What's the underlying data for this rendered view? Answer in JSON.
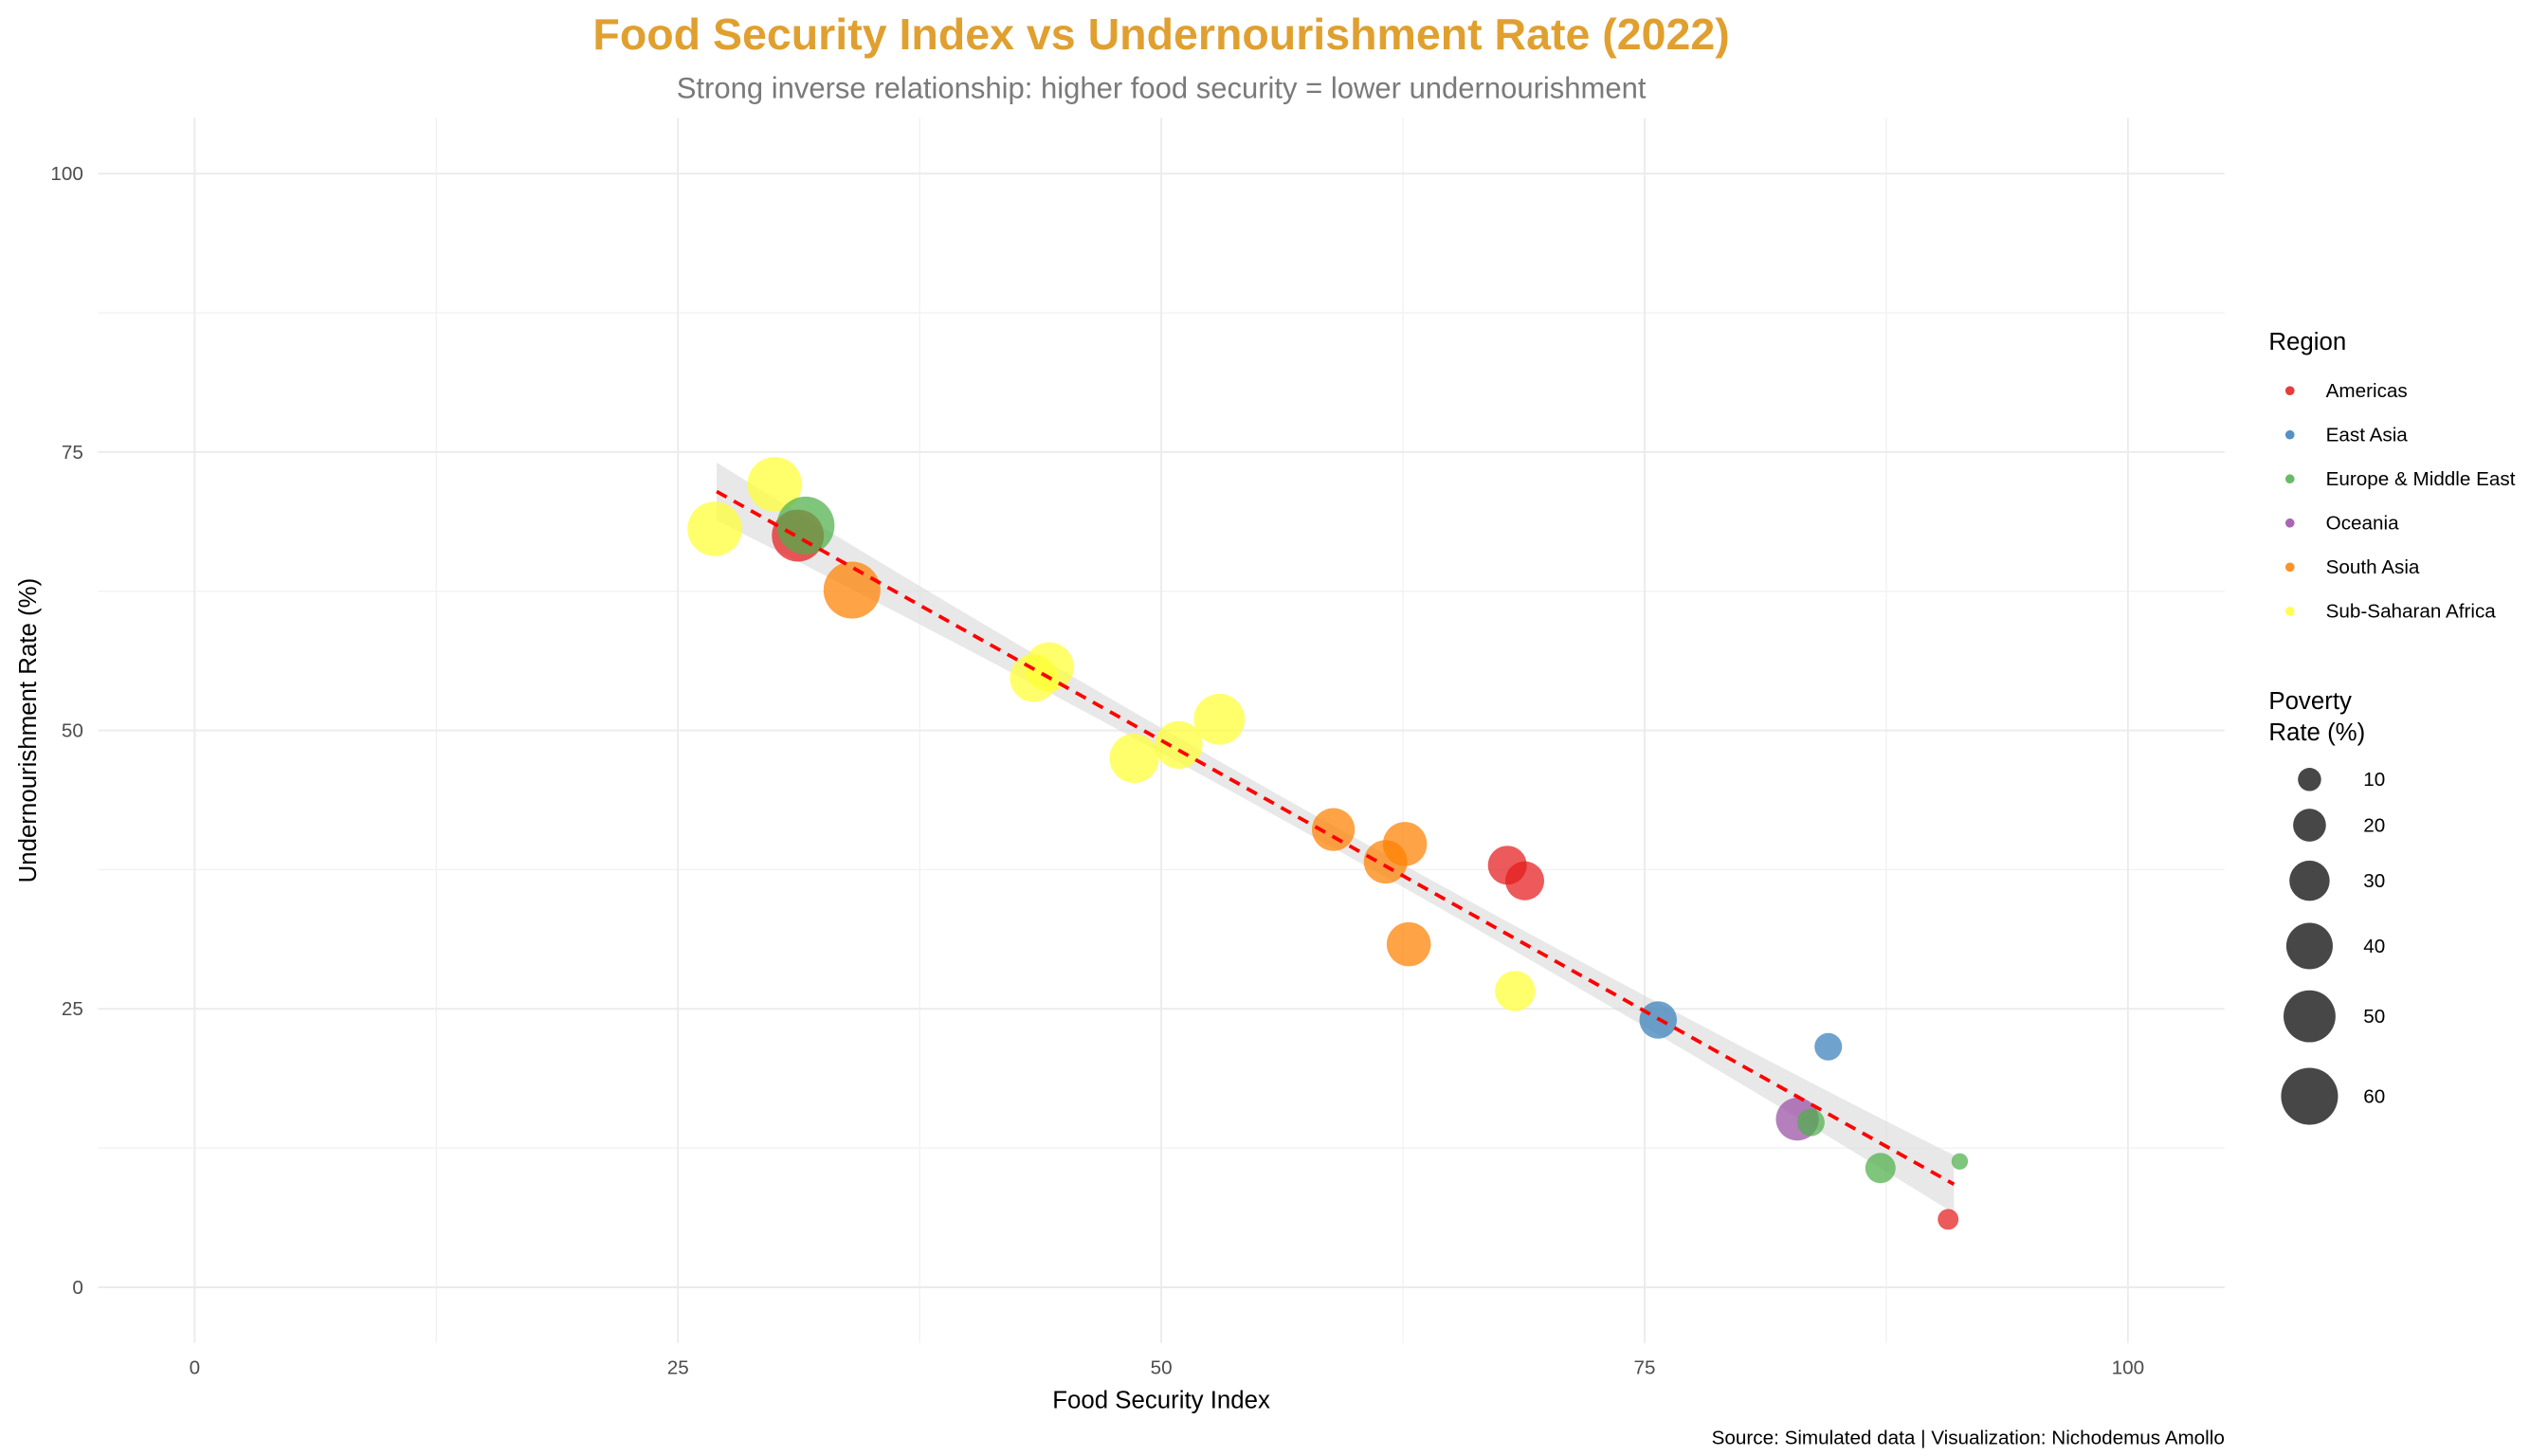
{
  "chart_data": {
    "type": "scatter",
    "title": "Food Security Index vs Undernourishment Rate (2022)",
    "subtitle": "Strong inverse relationship: higher food security = lower undernourishment",
    "xlabel": "Food Security Index",
    "ylabel": "Undernourishment Rate (%)",
    "caption": "Source: Simulated data | Visualization: Nichodemus Amollo",
    "xlim": [
      -5,
      105
    ],
    "ylim": [
      -5,
      105
    ],
    "xticks": [
      0,
      25,
      50,
      75,
      100
    ],
    "yticks": [
      0,
      25,
      50,
      75,
      100
    ],
    "grid": true,
    "title_color": "#E0A030",
    "legend": {
      "placement": "right",
      "color_title": "Region",
      "regions": [
        {
          "name": "Americas",
          "color": "#E41A1C"
        },
        {
          "name": "East Asia",
          "color": "#377EB8"
        },
        {
          "name": "Europe & Middle East",
          "color": "#4DAF4A"
        },
        {
          "name": "Oceania",
          "color": "#984EA3"
        },
        {
          "name": "South Asia",
          "color": "#FF7F00"
        },
        {
          "name": "Sub-Saharan Africa",
          "color": "#FFFF33"
        }
      ],
      "size_title_line1": "Poverty",
      "size_title_line2": "Rate (%)",
      "sizes": [
        10,
        20,
        30,
        40,
        50,
        60
      ]
    },
    "trend": {
      "type": "linear",
      "x_range": [
        27,
        91
      ],
      "slope": -0.972,
      "intercept": 97.7,
      "ci_halfwidth_ends": 2.6,
      "ci_halfwidth_center": 1.0,
      "color": "#FF0000"
    },
    "points": [
      {
        "region": "Sub-Saharan Africa",
        "x": 26.9,
        "y": 68.1,
        "poverty": 55
      },
      {
        "region": "Sub-Saharan Africa",
        "x": 30.0,
        "y": 72.1,
        "poverty": 55
      },
      {
        "region": "Americas",
        "x": 31.2,
        "y": 67.5,
        "poverty": 50
      },
      {
        "region": "Europe & Middle East",
        "x": 31.6,
        "y": 68.4,
        "poverty": 62
      },
      {
        "region": "South Asia",
        "x": 34.0,
        "y": 62.6,
        "poverty": 60
      },
      {
        "region": "Sub-Saharan Africa",
        "x": 43.4,
        "y": 54.7,
        "poverty": 42
      },
      {
        "region": "Sub-Saharan Africa",
        "x": 44.2,
        "y": 55.7,
        "poverty": 45
      },
      {
        "region": "Sub-Saharan Africa",
        "x": 48.6,
        "y": 47.5,
        "poverty": 45
      },
      {
        "region": "Sub-Saharan Africa",
        "x": 50.9,
        "y": 48.7,
        "poverty": 42
      },
      {
        "region": "Sub-Saharan Africa",
        "x": 53.0,
        "y": 51.0,
        "poverty": 48
      },
      {
        "region": "South Asia",
        "x": 58.9,
        "y": 41.1,
        "poverty": 34
      },
      {
        "region": "South Asia",
        "x": 62.6,
        "y": 39.8,
        "poverty": 36
      },
      {
        "region": "South Asia",
        "x": 61.6,
        "y": 38.2,
        "poverty": 35
      },
      {
        "region": "South Asia",
        "x": 62.8,
        "y": 30.8,
        "poverty": 36
      },
      {
        "region": "Americas",
        "x": 67.9,
        "y": 37.9,
        "poverty": 28
      },
      {
        "region": "Americas",
        "x": 68.8,
        "y": 36.5,
        "poverty": 28
      },
      {
        "region": "Sub-Saharan Africa",
        "x": 68.3,
        "y": 26.6,
        "poverty": 30
      },
      {
        "region": "East Asia",
        "x": 75.7,
        "y": 24.0,
        "poverty": 26
      },
      {
        "region": "East Asia",
        "x": 84.5,
        "y": 21.6,
        "poverty": 14
      },
      {
        "region": "Oceania",
        "x": 82.9,
        "y": 15.1,
        "poverty": 34
      },
      {
        "region": "Europe & Middle East",
        "x": 83.6,
        "y": 14.8,
        "poverty": 14
      },
      {
        "region": "Europe & Middle East",
        "x": 87.2,
        "y": 10.7,
        "poverty": 17
      },
      {
        "region": "Europe & Middle East",
        "x": 91.3,
        "y": 11.3,
        "poverty": 5
      },
      {
        "region": "Americas",
        "x": 90.7,
        "y": 6.1,
        "poverty": 8
      }
    ]
  }
}
